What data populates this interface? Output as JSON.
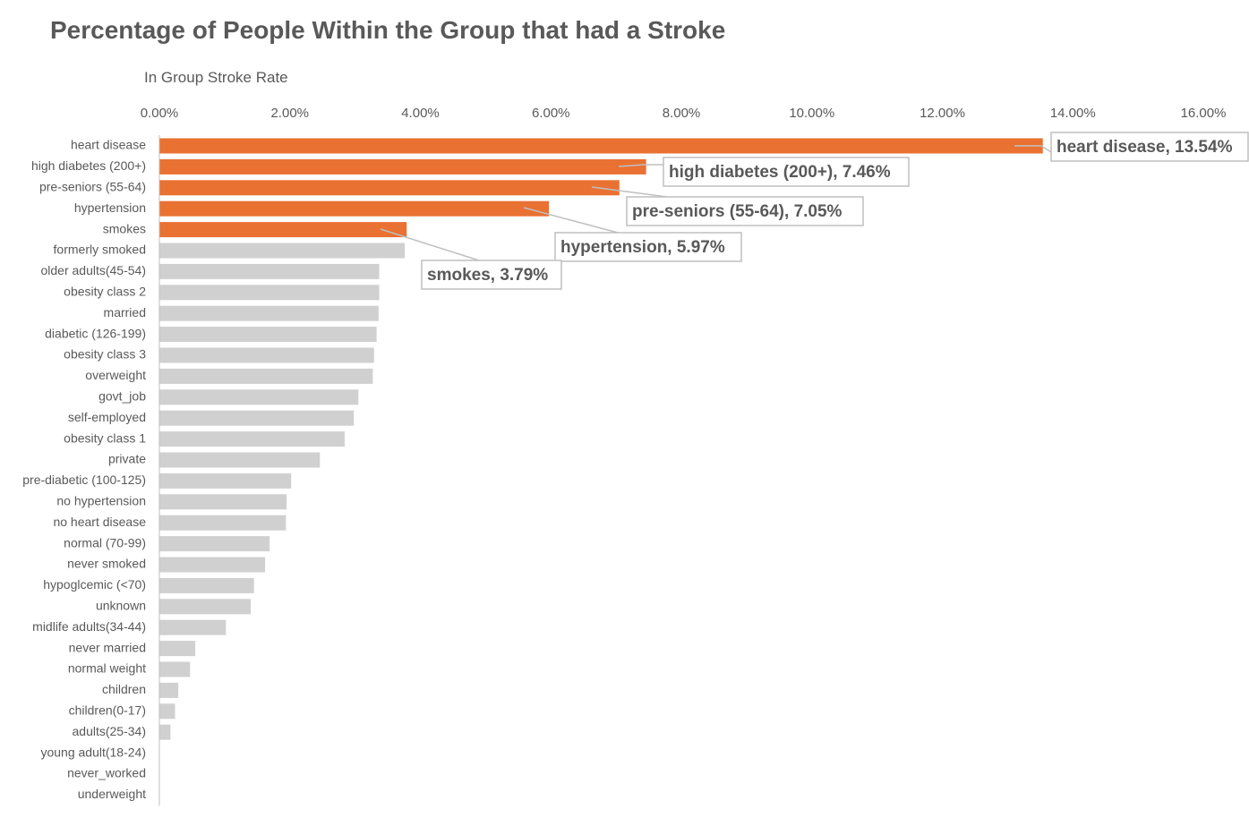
{
  "chart_data": {
    "type": "bar",
    "orientation": "horizontal",
    "title": "Percentage of People Within the Group that had a Stroke",
    "xlabel": "In Group Stroke Rate",
    "ylabel": "",
    "xlim": [
      0,
      16
    ],
    "x_tick_values": [
      0,
      2,
      4,
      6,
      8,
      10,
      12,
      14,
      16
    ],
    "x_tick_labels": [
      "0.00%",
      "2.00%",
      "4.00%",
      "6.00%",
      "8.00%",
      "10.00%",
      "12.00%",
      "14.00%",
      "16.00%"
    ],
    "x_axis_position": "top",
    "grid": false,
    "legend": "none",
    "highlight_color": "#E97132",
    "base_color": "#D0D0D0",
    "categories": [
      "heart disease",
      "high diabetes (200+)",
      "pre-seniors (55-64)",
      "hypertension",
      "smokes",
      "formerly smoked",
      "older adults(45-54)",
      "obesity class 2",
      "married",
      "diabetic (126-199)",
      "obesity class 3",
      "overweight",
      "govt_job",
      "self-employed",
      "obesity class 1",
      "private",
      "pre-diabetic (100-125)",
      "no hypertension",
      "no heart disease",
      "normal (70-99)",
      "never smoked",
      "hypoglcemic (<70)",
      "unknown",
      "midlife adults(34-44)",
      "never married",
      "normal weight",
      "children",
      "children(0-17)",
      "adults(25-34)",
      "young adult(18-24)",
      "never_worked",
      "underweight"
    ],
    "values": [
      13.54,
      7.46,
      7.05,
      5.97,
      3.79,
      3.76,
      3.37,
      3.37,
      3.36,
      3.33,
      3.29,
      3.27,
      3.05,
      2.98,
      2.84,
      2.46,
      2.02,
      1.95,
      1.94,
      1.69,
      1.62,
      1.45,
      1.4,
      1.02,
      0.55,
      0.47,
      0.29,
      0.24,
      0.17,
      0.0,
      0.0,
      0.0
    ],
    "highlighted": [
      "heart disease",
      "high diabetes (200+)",
      "pre-seniors (55-64)",
      "hypertension",
      "smokes"
    ],
    "annotations": [
      {
        "category": "heart disease",
        "text": "heart disease, 13.54%"
      },
      {
        "category": "high diabetes (200+)",
        "text": "high diabetes (200+), 7.46%"
      },
      {
        "category": "pre-seniors (55-64)",
        "text": "pre-seniors (55-64), 7.05%"
      },
      {
        "category": "hypertension",
        "text": "hypertension, 5.97%"
      },
      {
        "category": "smokes",
        "text": "smokes, 3.79%"
      }
    ]
  }
}
